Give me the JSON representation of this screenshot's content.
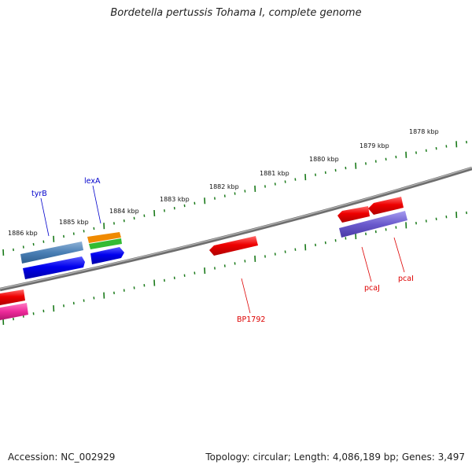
{
  "title": "Bordetella pertussis Tohama I, complete genome",
  "footer": {
    "accession": "Accession: NC_002929",
    "stats": "Topology: circular; Length: 4,086,189 bp; Genes: 3,497"
  },
  "colors": {
    "backbone": "#7a7a7a",
    "tick": "#1a7a1a",
    "forward_label": "#0000cc",
    "reverse_label": "#dd0000",
    "gene_red": "#ee0000",
    "gene_blue": "#0000ee",
    "gene_steel": "#4a7fb5",
    "gene_orange": "#f08a00",
    "gene_green": "#33bb33",
    "gene_magenta": "#ee2a9a",
    "gene_purple": "#6a5acd"
  },
  "kbp_labels": [
    "1886 kbp",
    "1885 kbp",
    "1884 kbp",
    "1883 kbp",
    "1882 kbp",
    "1881 kbp",
    "1880 kbp",
    "1879 kbp",
    "1878 kbp"
  ],
  "gene_labels": {
    "tyrB": "tyrB",
    "lexA": "lexA",
    "BP1792": "BP1792",
    "pcaJ": "pcaJ",
    "pcaI": "pcaI"
  }
}
